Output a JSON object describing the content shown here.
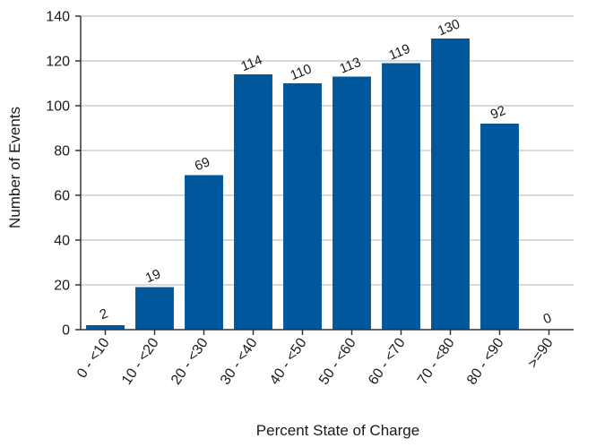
{
  "chart_data": {
    "type": "bar",
    "title": "",
    "xlabel": "Percent State of Charge",
    "ylabel": "Number of Events",
    "categories": [
      "0 - <10",
      "10 - <20",
      "20 - <30",
      "30 - <40",
      "40 - <50",
      "50 - <60",
      "60 - <70",
      "70 - <80",
      "80 - <90",
      ">=90"
    ],
    "values": [
      2,
      19,
      69,
      114,
      110,
      113,
      119,
      130,
      92,
      0
    ],
    "ylim": [
      0,
      140
    ],
    "yticks": [
      0,
      20,
      40,
      60,
      80,
      100,
      120,
      140
    ],
    "grid": true,
    "legend": "none",
    "bar_color": "#00579c",
    "grid_color": "#d9d9d9"
  }
}
